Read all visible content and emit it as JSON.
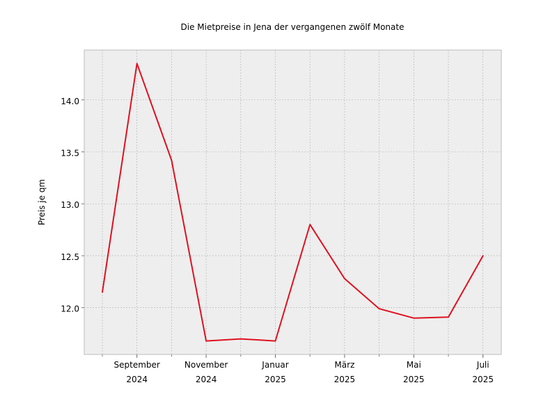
{
  "chart_data": {
    "type": "line",
    "title": "Die Mietpreise in Jena der vergangenen zwölf Monate",
    "xlabel": "",
    "ylabel": "Preis je qm",
    "x": [
      "2024-08",
      "2024-09",
      "2024-10",
      "2024-11",
      "2024-12",
      "2025-01",
      "2025-02",
      "2025-03",
      "2025-04",
      "2025-05",
      "2025-06",
      "2025-07"
    ],
    "series": [
      {
        "values": [
          12.15,
          14.35,
          13.42,
          11.68,
          11.7,
          11.68,
          12.8,
          12.28,
          11.99,
          11.9,
          11.91,
          12.5
        ],
        "color": "#e0101e"
      }
    ],
    "x_ticks": [
      {
        "x": "2024-09",
        "line1": "September",
        "line2": "2024"
      },
      {
        "x": "2024-11",
        "line1": "November",
        "line2": "2024"
      },
      {
        "x": "2025-01",
        "line1": "Januar",
        "line2": "2025"
      },
      {
        "x": "2025-03",
        "line1": "März",
        "line2": "2025"
      },
      {
        "x": "2025-05",
        "line1": "Mai",
        "line2": "2025"
      },
      {
        "x": "2025-07",
        "line1": "Juli",
        "line2": "2025"
      }
    ],
    "y_ticks": [
      "12.0",
      "12.5",
      "13.0",
      "13.5",
      "14.0"
    ],
    "ylim": [
      11.55,
      14.48
    ],
    "grid": true,
    "colors": {
      "plot_background": "#eeeeee",
      "grid": "#b0b0b0",
      "frame": "#bcbcbc",
      "line": "#e0101e"
    }
  }
}
